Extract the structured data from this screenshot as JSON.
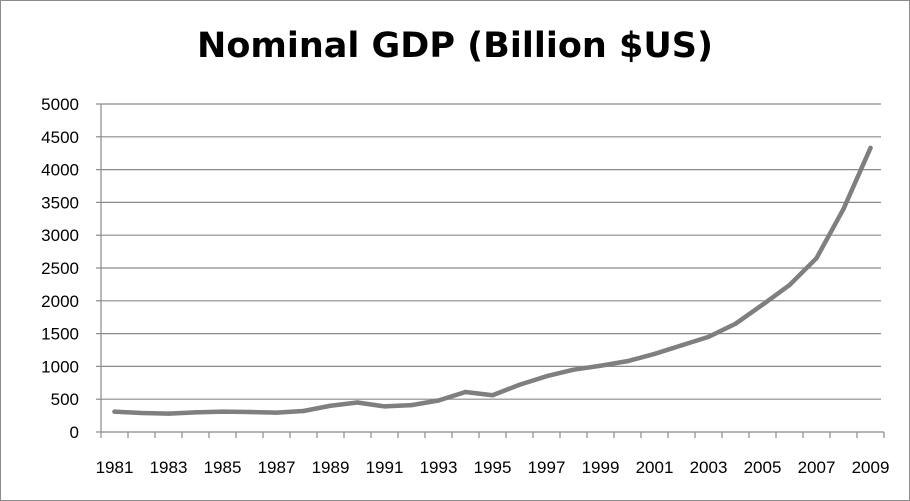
{
  "chart_data": {
    "type": "line",
    "title": "Nominal GDP (Billion $US)",
    "xlabel": "",
    "ylabel": "",
    "x": [
      1981,
      1982,
      1983,
      1984,
      1985,
      1986,
      1987,
      1988,
      1989,
      1990,
      1991,
      1992,
      1993,
      1994,
      1995,
      1996,
      1997,
      1998,
      1999,
      2000,
      2001,
      2002,
      2003,
      2004,
      2005,
      2006,
      2007,
      2008,
      2009
    ],
    "x_tick_labels": [
      "1981",
      "1983",
      "1985",
      "1987",
      "1989",
      "1991",
      "1993",
      "1995",
      "1997",
      "1999",
      "2001",
      "2003",
      "2005",
      "2007",
      "2009"
    ],
    "y_tick_labels": [
      "0",
      "500",
      "1000",
      "1500",
      "2000",
      "2500",
      "3000",
      "3500",
      "4000",
      "4500",
      "5000"
    ],
    "ylim": [
      0,
      5000
    ],
    "y_ticks": [
      0,
      500,
      1000,
      1500,
      2000,
      2500,
      3000,
      3500,
      4000,
      4500,
      5000
    ],
    "grid": true,
    "legend": "none",
    "series": [
      {
        "values": [
          310,
          290,
          280,
          300,
          310,
          305,
          295,
          320,
          400,
          450,
          390,
          410,
          480,
          610,
          560,
          720,
          850,
          950,
          1010,
          1080,
          1190,
          1320,
          1450,
          1650,
          1940,
          2240,
          2650,
          3400,
          4330
        ],
        "color": "#7f7f7f"
      }
    ]
  }
}
